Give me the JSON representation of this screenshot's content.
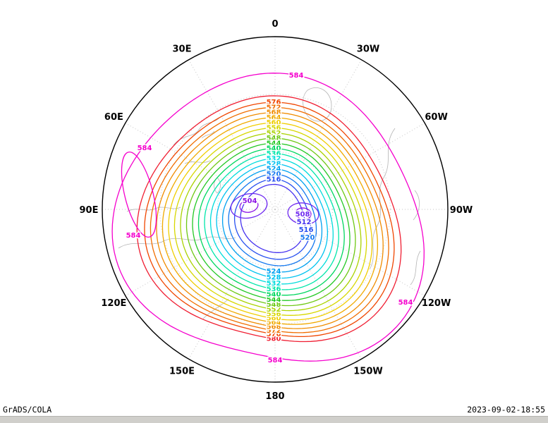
{
  "chart_data": {
    "type": "contour",
    "title": "",
    "projection": "polar stereographic (Northern Hemisphere)",
    "variable": "geopotential height",
    "contour_interval": 4,
    "value_range": [
      504,
      584
    ],
    "levels": [
      504,
      508,
      512,
      516,
      520,
      524,
      528,
      532,
      536,
      540,
      544,
      548,
      552,
      556,
      560,
      564,
      568,
      572,
      576,
      580,
      584
    ],
    "level_colors": {
      "504": "#8c14e6",
      "508": "#6e28f0",
      "512": "#4632f0",
      "516": "#2850f0",
      "520": "#1478f0",
      "524": "#00a0f0",
      "528": "#00c3f0",
      "532": "#00dcdc",
      "536": "#00e6aa",
      "540": "#00d75f",
      "544": "#23c823",
      "548": "#6ec814",
      "552": "#aad200",
      "556": "#d7d700",
      "560": "#f0cd00",
      "564": "#f0aa00",
      "568": "#f08c00",
      "572": "#f06e00",
      "576": "#f04600",
      "580": "#f01e32",
      "584": "#f500cd"
    },
    "longitude_labels": [
      "0",
      "30W",
      "60W",
      "90W",
      "120W",
      "150W",
      "180",
      "150E",
      "120E",
      "90E",
      "60E",
      "30E"
    ],
    "labels": {
      "top_stack": [
        576,
        572,
        568,
        564,
        560,
        556,
        552,
        548,
        544,
        540,
        536,
        532,
        528,
        524,
        520,
        516
      ],
      "bottom_stack": [
        580,
        576,
        572,
        568,
        564,
        560,
        556,
        552,
        548,
        544,
        540,
        536,
        532,
        528,
        524
      ],
      "outer_level_label": "584",
      "low_labels": [
        "504",
        "508",
        "512",
        "516",
        "520"
      ]
    },
    "graticule": {
      "longitude_step_deg": 30,
      "latitude_circles": 2
    },
    "low_centers": 2
  },
  "footer": {
    "attribution": "GrADS/COLA",
    "timestamp": "2023-09-02-18:55"
  }
}
